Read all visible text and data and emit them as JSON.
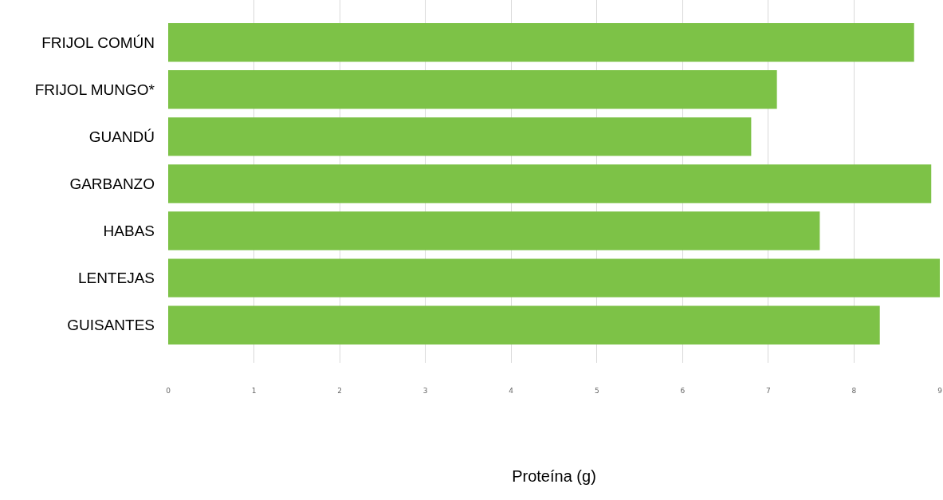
{
  "chart_data": {
    "type": "bar",
    "orientation": "horizontal",
    "xlabel": "Proteína (g)",
    "categories": [
      "FRIJOL COMÚN",
      "FRIJOL MUNGO*",
      "GUANDÚ",
      "GARBANZO",
      "HABAS",
      "LENTEJAS",
      "GUISANTES"
    ],
    "values": [
      8.7,
      7.1,
      6.8,
      8.9,
      7.6,
      9.0,
      8.3
    ],
    "color": "#7dc247",
    "xlim": [
      0,
      9
    ],
    "xticks": [
      0,
      1,
      2,
      3,
      4,
      5,
      6,
      7,
      8,
      9
    ],
    "grid": "x"
  }
}
